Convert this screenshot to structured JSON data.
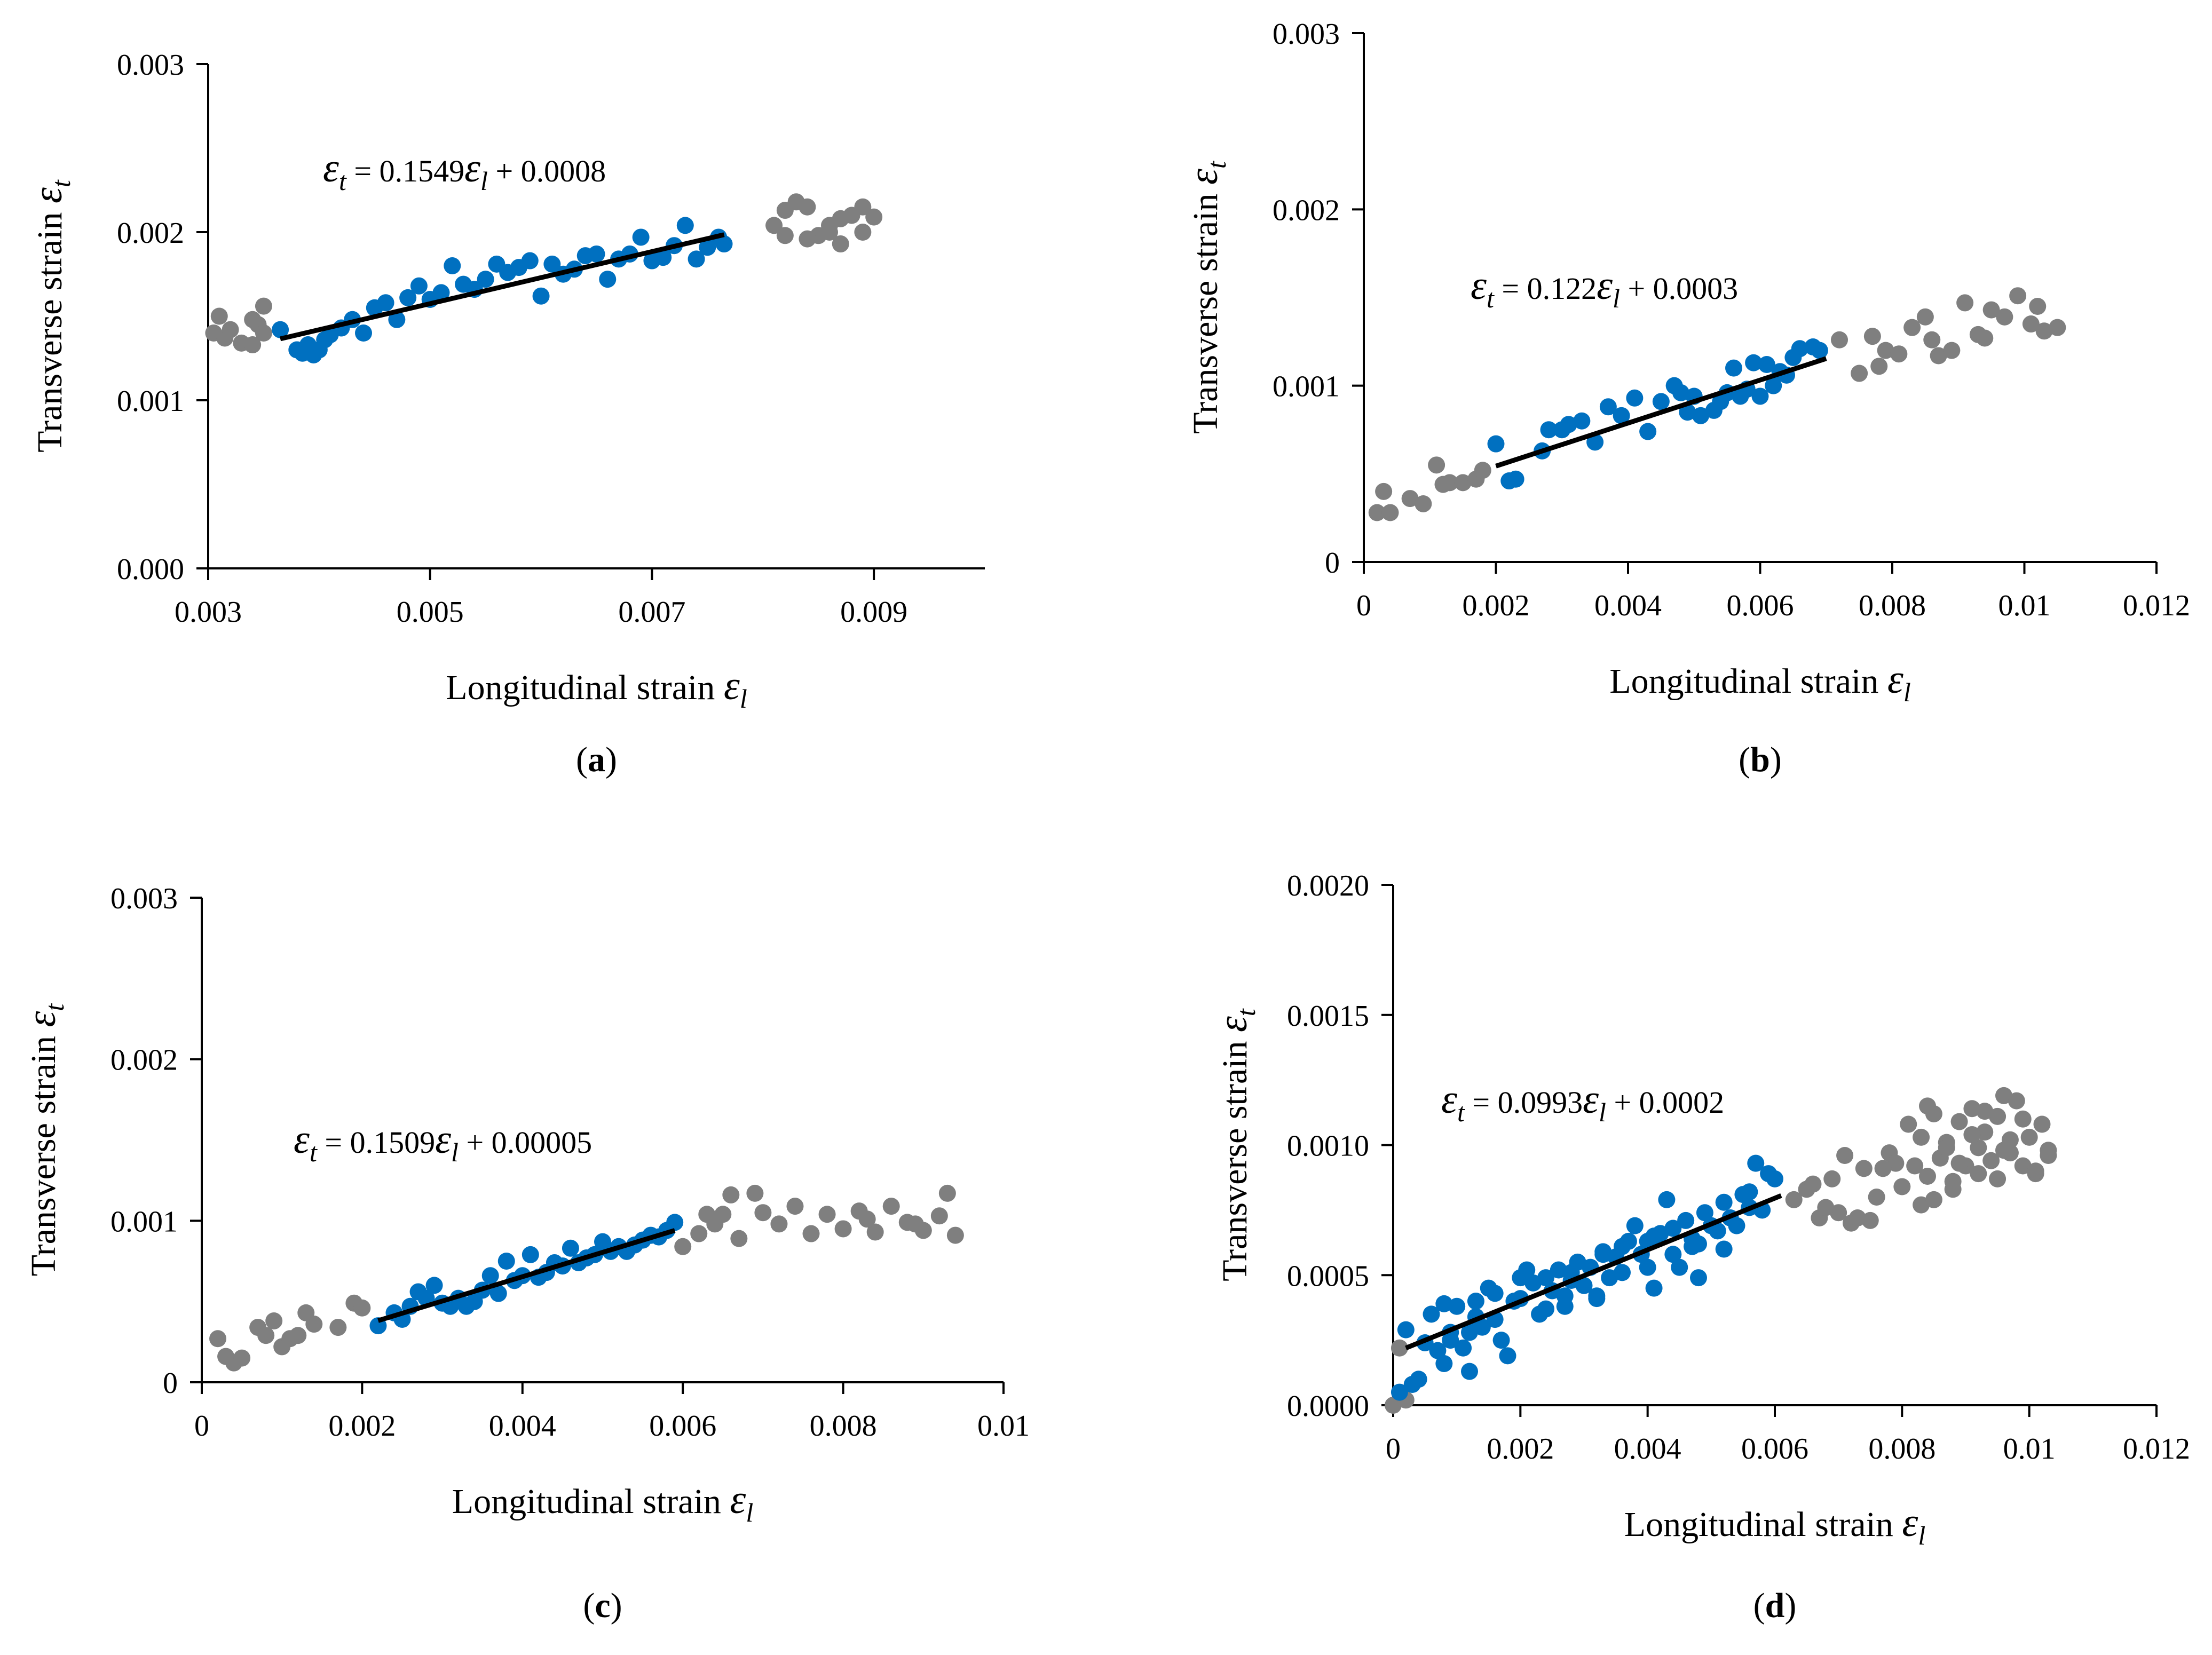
{
  "colors": {
    "fit_points": "#0070C0",
    "other_points": "#7F7F7F",
    "trend_line": "#000000",
    "axes": "#000000"
  },
  "chart_data": [
    {
      "type": "scatter",
      "panel_label": "a",
      "xlabel": "Longitudinal strain",
      "ylabel": "Transverse strain",
      "x_symbol": "ε",
      "x_subscript": "l",
      "y_symbol": "ε",
      "y_subscript": "t",
      "xlim": [
        0.003,
        0.01
      ],
      "ylim": [
        0,
        0.003
      ],
      "x_ticks": [
        0.003,
        0.005,
        0.007,
        0.009
      ],
      "x_tick_labels": [
        "0.003",
        "0.005",
        "0.007",
        "0.009"
      ],
      "y_ticks": [
        0,
        0.001,
        0.002,
        0.003
      ],
      "y_tick_labels": [
        "0.000",
        "0.001",
        "0.002",
        "0.003"
      ],
      "equation": {
        "lhs": "t",
        "coef": "0.1549",
        "var": "l",
        "const": "0.0008"
      },
      "trendline": {
        "slope": 0.1549,
        "intercept": 0.0008,
        "x_range": [
          0.00365,
          0.00765
        ]
      },
      "series": [
        {
          "role": "fit",
          "x": [
            0.00365,
            0.0038,
            0.00385,
            0.0039,
            0.00395,
            0.004,
            0.00405,
            0.0041,
            0.0042,
            0.0043,
            0.0044,
            0.0045,
            0.0046,
            0.0047,
            0.0048,
            0.0049,
            0.005,
            0.0051,
            0.0052,
            0.0053,
            0.0054,
            0.0055,
            0.0056,
            0.0057,
            0.0058,
            0.0059,
            0.006,
            0.0061,
            0.0062,
            0.0063,
            0.0064,
            0.0065,
            0.0066,
            0.0067,
            0.0068,
            0.0069,
            0.007,
            0.0071,
            0.0072,
            0.0073,
            0.0074,
            0.0075,
            0.0076,
            0.00765
          ],
          "y": [
            0.00142,
            0.0013,
            0.00128,
            0.00133,
            0.00127,
            0.0013,
            0.00136,
            0.00139,
            0.00143,
            0.00148,
            0.0014,
            0.00155,
            0.00158,
            0.00148,
            0.00161,
            0.00168,
            0.0016,
            0.00164,
            0.0018,
            0.00169,
            0.00166,
            0.00172,
            0.00181,
            0.00176,
            0.00179,
            0.00183,
            0.00162,
            0.00181,
            0.00175,
            0.00178,
            0.00186,
            0.00187,
            0.00172,
            0.00184,
            0.00187,
            0.00197,
            0.00183,
            0.00185,
            0.00192,
            0.00204,
            0.00184,
            0.00191,
            0.00197,
            0.00193
          ]
        },
        {
          "role": "excluded",
          "x": [
            0.00305,
            0.0031,
            0.00315,
            0.0032,
            0.0033,
            0.0034,
            0.0034,
            0.00345,
            0.0035,
            0.0035,
            0.0081,
            0.0082,
            0.0083,
            0.0084,
            0.0085,
            0.0086,
            0.0087,
            0.0088,
            0.0089,
            0.009,
            0.0082,
            0.0086,
            0.0089,
            0.0084,
            0.0087
          ],
          "y": [
            0.0014,
            0.0015,
            0.00137,
            0.00142,
            0.00134,
            0.00148,
            0.00133,
            0.00145,
            0.00156,
            0.0014,
            0.00204,
            0.00198,
            0.00218,
            0.00215,
            0.00198,
            0.00204,
            0.00193,
            0.0021,
            0.002,
            0.00209,
            0.00213,
            0.002,
            0.00215,
            0.00196,
            0.00208
          ]
        }
      ]
    },
    {
      "type": "scatter",
      "panel_label": "b",
      "xlabel": "Longitudinal strain",
      "ylabel": "Transverse strain",
      "x_symbol": "ε",
      "x_subscript": "l",
      "y_symbol": "ε",
      "y_subscript": "t",
      "xlim": [
        0,
        0.012
      ],
      "ylim": [
        0,
        0.003
      ],
      "x_ticks": [
        0,
        0.002,
        0.004,
        0.006,
        0.008,
        0.01,
        0.012
      ],
      "x_tick_labels": [
        "0",
        "0.002",
        "0.004",
        "0.006",
        "0.008",
        "0.01",
        "0.012"
      ],
      "y_ticks": [
        0,
        0.001,
        0.002,
        0.003
      ],
      "y_tick_labels": [
        "0",
        "0.001",
        "0.002",
        "0.003"
      ],
      "equation": {
        "lhs": "t",
        "coef": "0.122",
        "var": "l",
        "const": "0.0003"
      },
      "trendline": {
        "slope": 0.122,
        "intercept": 0.0003,
        "x_range": [
          0.002,
          0.007
        ]
      },
      "series": [
        {
          "role": "fit",
          "x": [
            0.002,
            0.0022,
            0.0023,
            0.0027,
            0.0028,
            0.003,
            0.0031,
            0.0033,
            0.0035,
            0.0037,
            0.0039,
            0.0041,
            0.0043,
            0.0045,
            0.0047,
            0.0048,
            0.0049,
            0.005,
            0.0051,
            0.0053,
            0.0054,
            0.0055,
            0.0056,
            0.0057,
            0.0058,
            0.0059,
            0.006,
            0.0061,
            0.0062,
            0.0063,
            0.0064,
            0.0065,
            0.0066,
            0.0068,
            0.0069
          ],
          "y": [
            0.00067,
            0.00046,
            0.00047,
            0.00063,
            0.00075,
            0.00075,
            0.00078,
            0.0008,
            0.00068,
            0.00088,
            0.00083,
            0.00093,
            0.00074,
            0.00091,
            0.001,
            0.00096,
            0.00085,
            0.00094,
            0.00083,
            0.00086,
            0.00091,
            0.00096,
            0.0011,
            0.00094,
            0.00098,
            0.00113,
            0.00094,
            0.00112,
            0.001,
            0.00108,
            0.00106,
            0.00116,
            0.00121,
            0.00122,
            0.0012
          ]
        },
        {
          "role": "excluded",
          "x": [
            0.0002,
            0.0003,
            0.0004,
            0.0007,
            0.0009,
            0.0011,
            0.0012,
            0.0013,
            0.0015,
            0.0017,
            0.0018,
            0.0072,
            0.0075,
            0.0077,
            0.0079,
            0.0081,
            0.0083,
            0.0085,
            0.0087,
            0.0089,
            0.0091,
            0.0093,
            0.0095,
            0.0097,
            0.0099,
            0.0101,
            0.0103,
            0.0105,
            0.0078,
            0.0086,
            0.0094,
            0.0102
          ],
          "y": [
            0.00028,
            0.0004,
            0.00028,
            0.00036,
            0.00033,
            0.00055,
            0.00044,
            0.00045,
            0.00045,
            0.00047,
            0.00052,
            0.00126,
            0.00107,
            0.00128,
            0.0012,
            0.00118,
            0.00133,
            0.00139,
            0.00117,
            0.0012,
            0.00147,
            0.00129,
            0.00143,
            0.00139,
            0.00151,
            0.00135,
            0.00131,
            0.00133,
            0.00111,
            0.00126,
            0.00127,
            0.00145
          ]
        }
      ]
    },
    {
      "type": "scatter",
      "panel_label": "c",
      "xlabel": "Longitudinal strain",
      "ylabel": "Transverse strain",
      "x_symbol": "ε",
      "x_subscript": "l",
      "y_symbol": "ε",
      "y_subscript": "t",
      "xlim": [
        0,
        0.01
      ],
      "ylim": [
        0,
        0.003
      ],
      "x_ticks": [
        0,
        0.002,
        0.004,
        0.006,
        0.008,
        0.01
      ],
      "x_tick_labels": [
        "0",
        "0.002",
        "0.004",
        "0.006",
        "0.008",
        "0.01"
      ],
      "y_ticks": [
        0,
        0.001,
        0.002,
        0.003
      ],
      "y_tick_labels": [
        "0",
        "0.001",
        "0.002",
        "0.003"
      ],
      "equation": {
        "lhs": "t",
        "coef": "0.1509",
        "var": "l",
        "const": "0.00005"
      },
      "trendline": {
        "slope": 0.1509,
        "intercept": 5e-05,
        "x_range": [
          0.0022,
          0.0059
        ]
      },
      "series": [
        {
          "role": "fit",
          "x": [
            0.0022,
            0.0024,
            0.0025,
            0.0026,
            0.0027,
            0.0028,
            0.0029,
            0.003,
            0.0031,
            0.0032,
            0.0033,
            0.0034,
            0.0035,
            0.0036,
            0.0037,
            0.0038,
            0.0039,
            0.004,
            0.0041,
            0.0042,
            0.0043,
            0.0044,
            0.0045,
            0.0046,
            0.0047,
            0.0048,
            0.0049,
            0.005,
            0.0051,
            0.0052,
            0.0053,
            0.0054,
            0.0055,
            0.0056,
            0.0057,
            0.0058,
            0.0059
          ],
          "y": [
            0.00035,
            0.00043,
            0.00039,
            0.00047,
            0.00056,
            0.00052,
            0.0006,
            0.00049,
            0.00047,
            0.00052,
            0.00047,
            0.0005,
            0.00057,
            0.00066,
            0.00055,
            0.00075,
            0.00063,
            0.00066,
            0.00079,
            0.00065,
            0.00068,
            0.00074,
            0.00072,
            0.00083,
            0.00074,
            0.00077,
            0.00079,
            0.00087,
            0.00081,
            0.00084,
            0.00081,
            0.00085,
            0.00088,
            0.00091,
            0.0009,
            0.00094,
            0.00099
          ]
        },
        {
          "role": "excluded",
          "x": [
            0.0002,
            0.0003,
            0.0004,
            0.0005,
            0.0007,
            0.0008,
            0.0009,
            0.001,
            0.0011,
            0.0012,
            0.0013,
            0.0014,
            0.0017,
            0.0019,
            0.002,
            0.006,
            0.0062,
            0.0064,
            0.0065,
            0.0066,
            0.0069,
            0.007,
            0.0072,
            0.0074,
            0.0076,
            0.0078,
            0.008,
            0.0082,
            0.0084,
            0.0086,
            0.0088,
            0.009,
            0.0092,
            0.0093,
            0.0094,
            0.0063,
            0.0067,
            0.0083,
            0.0089
          ],
          "y": [
            0.00027,
            0.00016,
            0.00012,
            0.00015,
            0.00034,
            0.00029,
            0.00038,
            0.00022,
            0.00027,
            0.00029,
            0.00043,
            0.00036,
            0.00034,
            0.00049,
            0.00046,
            0.00084,
            0.00092,
            0.00098,
            0.00104,
            0.00116,
            0.00117,
            0.00105,
            0.00098,
            0.00109,
            0.00092,
            0.00104,
            0.00095,
            0.00106,
            0.00093,
            0.00109,
            0.00099,
            0.00094,
            0.00103,
            0.00117,
            0.00091,
            0.00104,
            0.00089,
            0.00101,
            0.00098
          ]
        }
      ]
    },
    {
      "type": "scatter",
      "panel_label": "d",
      "xlabel": "Longitudinal strain",
      "ylabel": "Transverse strain",
      "x_symbol": "ε",
      "x_subscript": "l",
      "y_symbol": "ε",
      "y_subscript": "t",
      "xlim": [
        0,
        0.012
      ],
      "ylim": [
        0,
        0.002
      ],
      "x_ticks": [
        0,
        0.002,
        0.004,
        0.006,
        0.008,
        0.01,
        0.012
      ],
      "x_tick_labels": [
        "0",
        "0.002",
        "0.004",
        "0.006",
        "0.008",
        "0.01",
        "0.012"
      ],
      "y_ticks": [
        0,
        0.0005,
        0.001,
        0.0015,
        0.002
      ],
      "y_tick_labels": [
        "0.0000",
        "0.0005",
        "0.0010",
        "0.0015",
        "0.0020"
      ],
      "equation": {
        "lhs": "t",
        "coef": "0.0993",
        "var": "l",
        "const": "0.0002"
      },
      "trendline": {
        "slope": 0.0993,
        "intercept": 0.0002,
        "x_range": [
          0.0002,
          0.0061
        ]
      },
      "series": [
        {
          "role": "fit",
          "x": [
            0.0001,
            0.0002,
            0.0003,
            0.0004,
            0.0005,
            0.0006,
            0.0007,
            0.0008,
            0.0009,
            0.001,
            0.0011,
            0.0012,
            0.0013,
            0.0014,
            0.0015,
            0.0016,
            0.0017,
            0.0018,
            0.0019,
            0.002,
            0.0021,
            0.0022,
            0.0023,
            0.0024,
            0.0025,
            0.0026,
            0.0027,
            0.0028,
            0.0029,
            0.003,
            0.0031,
            0.0032,
            0.0033,
            0.0034,
            0.0035,
            0.0036,
            0.0037,
            0.0038,
            0.0039,
            0.004,
            0.0041,
            0.0042,
            0.0043,
            0.0044,
            0.0045,
            0.0046,
            0.0047,
            0.0048,
            0.0049,
            0.005,
            0.0051,
            0.0052,
            0.0053,
            0.0054,
            0.0055,
            0.0056,
            0.0057,
            0.0058,
            0.0059,
            0.006,
            0.0008,
            0.0012,
            0.0016,
            0.002,
            0.0024,
            0.0028,
            0.0032,
            0.0036,
            0.004,
            0.0044,
            0.0048,
            0.0052,
            0.0056,
            0.0009,
            0.0013,
            0.0027,
            0.0033,
            0.0041,
            0.0047
          ],
          "y": [
            5e-05,
            0.00029,
            8e-05,
            0.0001,
            0.00024,
            0.00035,
            0.00021,
            0.00016,
            0.00028,
            0.00038,
            0.00022,
            0.00013,
            0.0004,
            0.0003,
            0.00045,
            0.00033,
            0.00025,
            0.00019,
            0.0004,
            0.00041,
            0.00052,
            0.00047,
            0.00035,
            0.00049,
            0.00044,
            0.00052,
            0.00038,
            0.00048,
            0.00055,
            0.00046,
            0.00053,
            0.00042,
            0.00059,
            0.00049,
            0.00057,
            0.00051,
            0.00063,
            0.00069,
            0.00058,
            0.00063,
            0.00045,
            0.00066,
            0.00079,
            0.00058,
            0.00053,
            0.00071,
            0.00064,
            0.00062,
            0.00074,
            0.00069,
            0.00067,
            0.00078,
            0.00072,
            0.00069,
            0.00081,
            0.00076,
            0.00093,
            0.00075,
            0.00089,
            0.00087,
            0.00039,
            0.00028,
            0.00043,
            0.00049,
            0.00037,
            0.00051,
            0.00041,
            0.00061,
            0.00053,
            0.00068,
            0.00049,
            0.0006,
            0.00082,
            0.00025,
            0.00034,
            0.00042,
            0.00058,
            0.00065,
            0.00061
          ]
        },
        {
          "role": "excluded",
          "x": [
            0.0,
            0.0001,
            0.0002,
            0.0063,
            0.0065,
            0.0067,
            0.0069,
            0.007,
            0.0072,
            0.0074,
            0.0076,
            0.0078,
            0.008,
            0.0081,
            0.0082,
            0.0083,
            0.0084,
            0.0085,
            0.0086,
            0.0087,
            0.0088,
            0.0089,
            0.009,
            0.0091,
            0.0092,
            0.0093,
            0.0094,
            0.0095,
            0.0096,
            0.0097,
            0.0098,
            0.0099,
            0.01,
            0.0101,
            0.0102,
            0.0103,
            0.0066,
            0.0071,
            0.0075,
            0.0079,
            0.0083,
            0.0087,
            0.0091,
            0.0095,
            0.0099,
            0.0103,
            0.0068,
            0.0073,
            0.0077,
            0.0085,
            0.0089,
            0.0093,
            0.0097,
            0.0101,
            0.0084,
            0.0088,
            0.0096,
            0.0092
          ],
          "y": [
            0.0,
            0.00022,
            2e-05,
            0.00079,
            0.00083,
            0.00072,
            0.00087,
            0.00074,
            0.0007,
            0.00091,
            0.0008,
            0.00097,
            0.00084,
            0.00108,
            0.00092,
            0.00103,
            0.00088,
            0.00112,
            0.00095,
            0.00101,
            0.00086,
            0.00109,
            0.00092,
            0.00114,
            0.00099,
            0.00105,
            0.00094,
            0.00111,
            0.00119,
            0.00097,
            0.00117,
            0.00092,
            0.00103,
            0.00089,
            0.00108,
            0.00096,
            0.00085,
            0.00096,
            0.00071,
            0.00093,
            0.00077,
            0.00099,
            0.00104,
            0.00087,
            0.0011,
            0.00098,
            0.00076,
            0.00072,
            0.00091,
            0.00079,
            0.00093,
            0.00113,
            0.00102,
            0.0009,
            0.00115,
            0.00083,
            0.00098,
            0.00089
          ]
        }
      ]
    }
  ]
}
